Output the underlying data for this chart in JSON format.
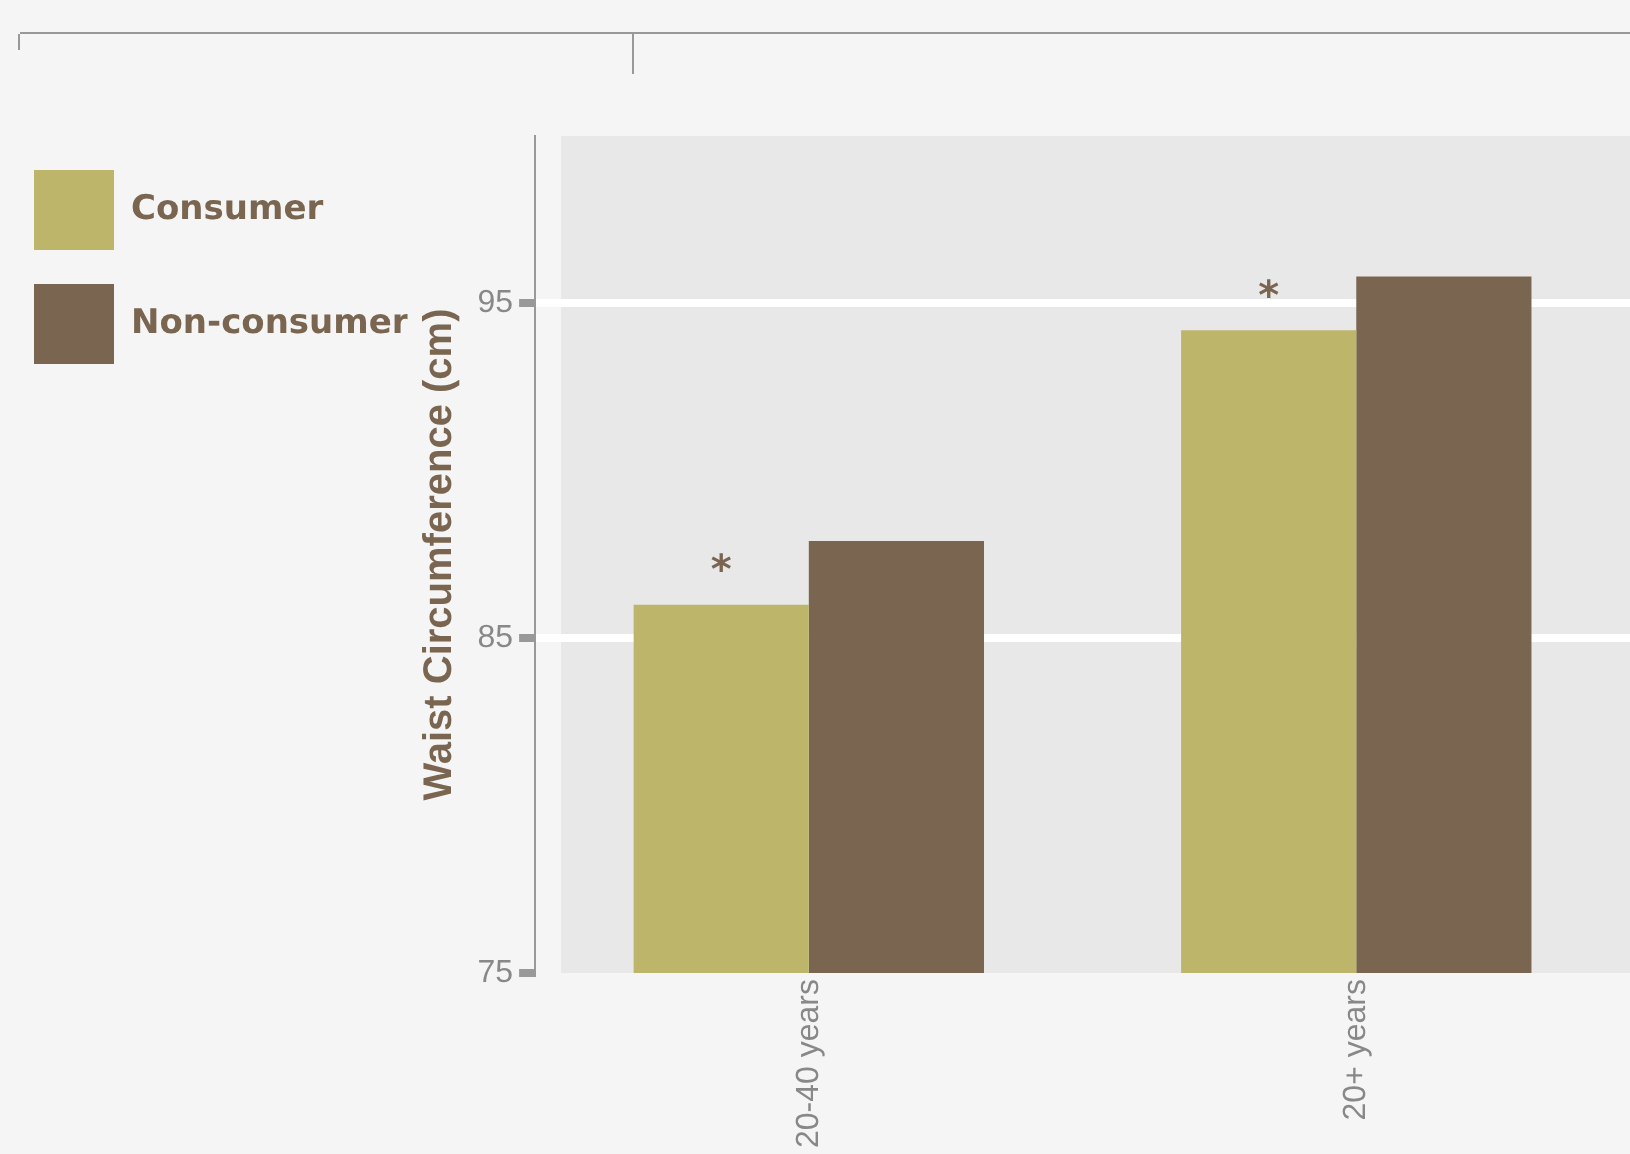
{
  "chart_data": {
    "type": "bar",
    "ylabel": "Waist Circumference (cm)",
    "categories": [
      "20-40 years",
      "20+ years"
    ],
    "series": [
      {
        "name": "Consumer",
        "color": "#bdb66a",
        "values": [
          86.0,
          94.2
        ]
      },
      {
        "name": "Non-consumer",
        "color": "#7a6650",
        "values": [
          87.9,
          95.8
        ]
      }
    ],
    "ylim": [
      75,
      100
    ],
    "yticks": [
      75,
      85,
      95
    ],
    "grid": "y",
    "legend": "left",
    "annotations": [
      {
        "text": "*",
        "x": "20-40 years",
        "y": 86.0
      },
      {
        "text": "*",
        "x": "20+ years",
        "y": 94.2
      }
    ]
  }
}
